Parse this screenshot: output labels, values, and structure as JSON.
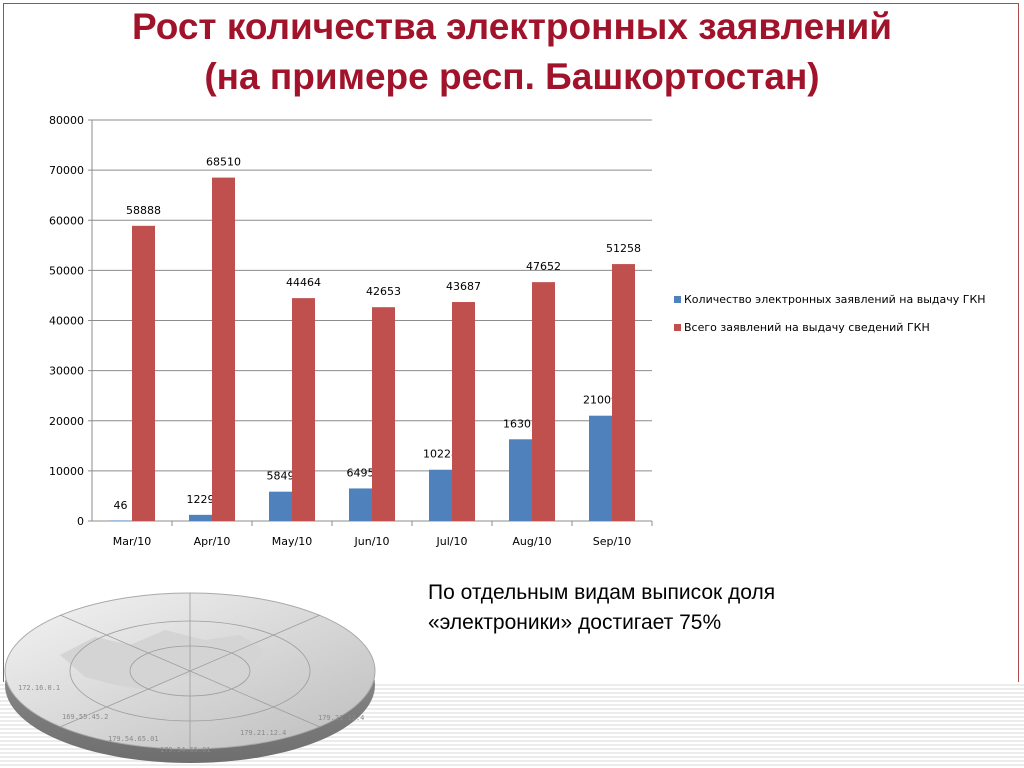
{
  "title": {
    "line1": "Рост количества электронных заявлений",
    "line2": "(на примере респ. Башкортостан)"
  },
  "note": {
    "line1": "По отдельным видам выписок доля",
    "line2": "«электроники» достигает 75%"
  },
  "decoration": {
    "icon": "globe-icon",
    "ip_labels": [
      "172.16.0.1",
      "169.55.45.2",
      "179.54.65.01",
      "179.54.65.01",
      "179.21.12.4",
      "179.21.12.4"
    ]
  },
  "colors": {
    "title": "#a0132a",
    "series_blue": "#4f81bd",
    "series_red": "#c0504d",
    "frame": "#b04a4a"
  },
  "chart_data": {
    "type": "bar",
    "categories": [
      "Mar/10",
      "Apr/10",
      "May/10",
      "Jun/10",
      "Jul/10",
      "Aug/10",
      "Sep/10"
    ],
    "series": [
      {
        "name": "Количество электронных заявлений на выдачу ГКН",
        "color": "#4f81bd",
        "values": [
          46,
          1229,
          5849,
          6495,
          10228,
          16301,
          21009
        ]
      },
      {
        "name": "Всего заявлений на выдачу сведений ГКН",
        "color": "#c0504d",
        "values": [
          58888,
          68510,
          44464,
          42653,
          43687,
          47652,
          51258
        ]
      }
    ],
    "ylim": [
      0,
      80000
    ],
    "yticks": [
      0,
      10000,
      20000,
      30000,
      40000,
      50000,
      60000,
      70000,
      80000
    ],
    "grid": true,
    "data_labels": true,
    "legend_position": "right"
  }
}
